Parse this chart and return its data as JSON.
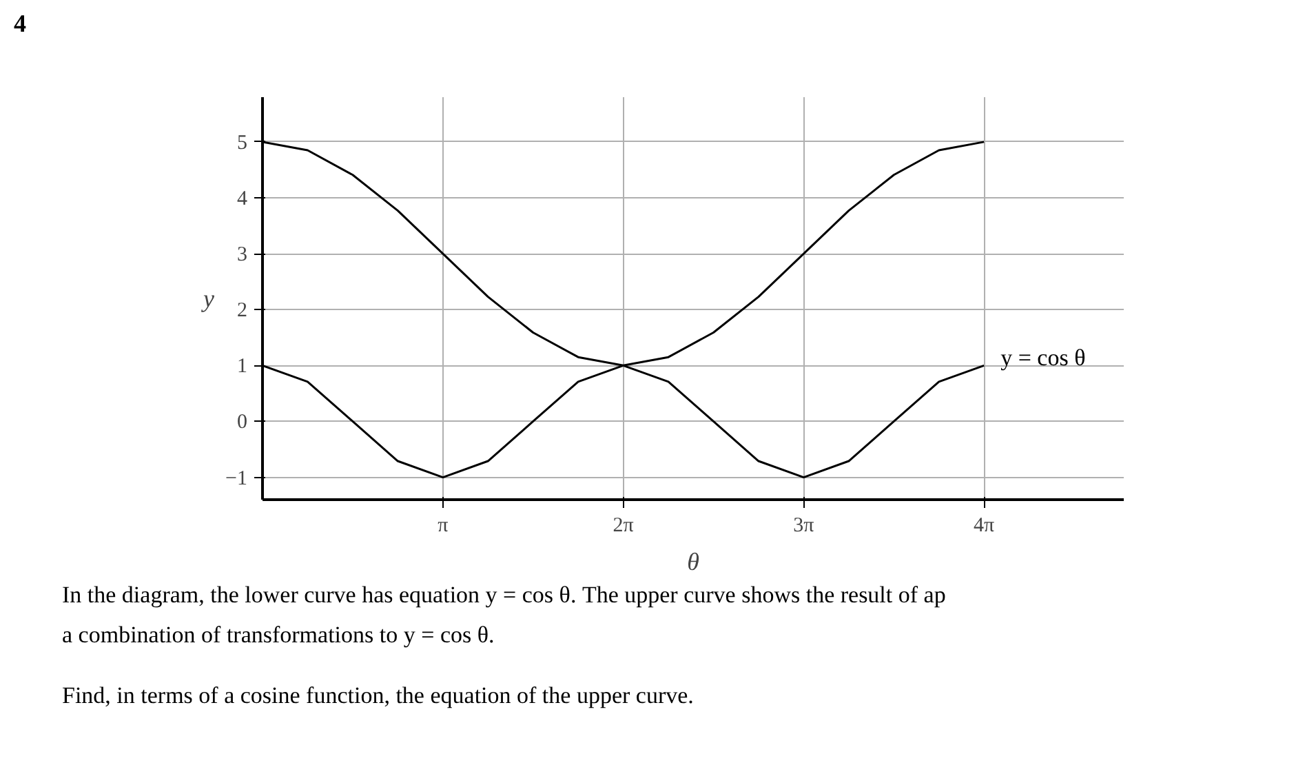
{
  "chart_data": {
    "type": "line",
    "xlabel": "θ",
    "ylabel": "y",
    "x": [
      0,
      0.785,
      1.571,
      2.356,
      3.142,
      3.927,
      4.712,
      5.498,
      6.283,
      7.069,
      7.854,
      8.639,
      9.425,
      10.21,
      10.996,
      11.781,
      12.566
    ],
    "series": [
      {
        "values": [
          5,
          4.85,
          4.41,
          3.77,
          3,
          2.23,
          1.59,
          1.15,
          1,
          1.15,
          1.59,
          2.23,
          3,
          3.77,
          4.41,
          4.85,
          5
        ],
        "color": "#000000"
      },
      {
        "name": "y = cos θ",
        "values": [
          1,
          0.71,
          0,
          -0.71,
          -1,
          -0.71,
          0,
          0.71,
          1,
          0.71,
          0,
          -0.71,
          -1,
          -0.71,
          0,
          0.71,
          1
        ],
        "color": "#000000"
      }
    ],
    "xlim": [
      0,
      15
    ],
    "ylim": [
      -1.4,
      5.8
    ],
    "xticks": [
      {
        "value": 3.142,
        "label": "π"
      },
      {
        "value": 6.283,
        "label": "2π"
      },
      {
        "value": 9.425,
        "label": "3π"
      },
      {
        "value": 12.566,
        "label": "4π"
      }
    ],
    "yticks": [
      {
        "value": -1,
        "label": "−1"
      },
      0,
      1,
      2,
      3,
      4,
      5
    ],
    "grid": true,
    "marker": "none",
    "line_style": "solid",
    "annotations": [
      "4",
      "In the diagram, the lower curve has equation y = cos θ. The upper curve shows the result of ap",
      "a combination of transformations to y = cos θ.",
      "Find, in terms of a cosine function, the equation of the upper curve."
    ]
  }
}
